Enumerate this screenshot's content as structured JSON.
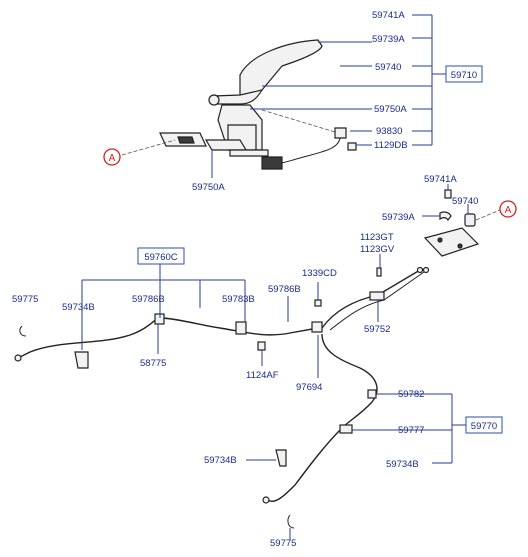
{
  "parts": {
    "p59741A_top": "59741A",
    "p59739A_top": "59739A",
    "p59740_top": "59740",
    "p59710": "59710",
    "p59750A_right": "59750A",
    "p93830": "93830",
    "p1129DB": "1129DB",
    "p59750A_left": "59750A",
    "p59741A_mid": "59741A",
    "p59740_mid": "59740",
    "p59739A_mid": "59739A",
    "p1123GT": "1123GT",
    "p1123GV": "1123GV",
    "p59760C": "59760C",
    "p1339CD": "1339CD",
    "p59775_left": "59775",
    "p59734B_left": "59734B",
    "p59786B_a": "59786B",
    "p59783B": "59783B",
    "p59786B_b": "59786B",
    "p59752": "59752",
    "p58775": "58775",
    "p1124AF": "1124AF",
    "p97694": "97694",
    "p59782": "59782",
    "p59777": "59777",
    "p59770": "59770",
    "p59734B_low": "59734B",
    "p59734B_right": "59734B",
    "p59775_bottom": "59775"
  },
  "callouts": {
    "a_left": "A",
    "a_right": "A"
  }
}
